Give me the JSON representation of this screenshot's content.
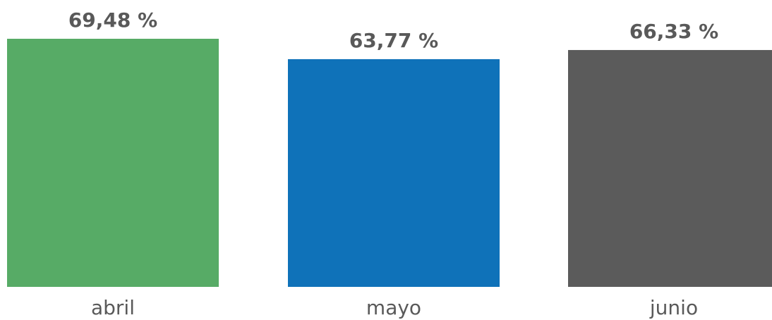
{
  "chart_data": {
    "type": "bar",
    "categories": [
      "abril",
      "mayo",
      "junio"
    ],
    "values": [
      69.48,
      63.77,
      66.33
    ],
    "data_labels": [
      "69,48 %",
      "63,77 %",
      "66,33 %"
    ],
    "colors": [
      "#57ab66",
      "#0f72b9",
      "#5b5b5b"
    ],
    "title": "",
    "xlabel": "",
    "ylabel": "",
    "ylim": [
      0,
      69.48
    ],
    "grid": false,
    "legend": "none",
    "y_axis_visible": false
  }
}
